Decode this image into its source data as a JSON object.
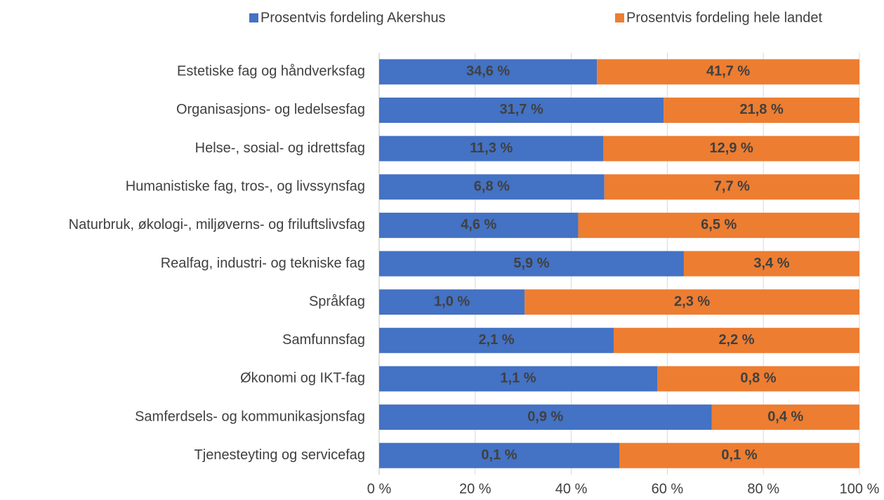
{
  "chart_data": {
    "type": "bar",
    "orientation": "horizontal",
    "stacking": "percent",
    "categories": [
      "Estetiske fag og håndverksfag",
      "Organisasjons- og ledelsesfag",
      "Helse-, sosial- og idrettsfag",
      "Humanistiske fag, tros-, og livssynsfag",
      "Naturbruk, økologi-, miljøverns- og friluftslivsfag",
      "Realfag, industri- og tekniske fag",
      "Språkfag",
      "Samfunnsfag",
      "Økonomi og IKT-fag",
      "Samferdsels- og kommunikasjonsfag",
      "Tjenesteyting og servicefag"
    ],
    "series": [
      {
        "name": "Prosentvis fordeling Akershus",
        "color": "#4472c4",
        "values": [
          34.6,
          31.7,
          11.3,
          6.8,
          4.6,
          5.9,
          1.0,
          2.1,
          1.1,
          0.9,
          0.1
        ],
        "value_labels": [
          "34,6 %",
          "31,7 %",
          "11,3 %",
          "6,8 %",
          "4,6 %",
          "5,9 %",
          "1,0 %",
          "2,1 %",
          "1,1 %",
          "0,9 %",
          "0,1 %"
        ]
      },
      {
        "name": "Prosentvis fordeling hele landet",
        "color": "#ed7d31",
        "values": [
          41.7,
          21.8,
          12.9,
          7.7,
          6.5,
          3.4,
          2.3,
          2.2,
          0.8,
          0.4,
          0.1
        ],
        "value_labels": [
          "41,7 %",
          "21,8 %",
          "12,9 %",
          "7,7 %",
          "6,5 %",
          "3,4 %",
          "2,3 %",
          "2,2 %",
          "0,8 %",
          "0,4 %",
          "0,1 %"
        ]
      }
    ],
    "xlim": [
      0,
      100
    ],
    "xticks": [
      {
        "value": 0,
        "label": "0 %"
      },
      {
        "value": 20,
        "label": "20 %"
      },
      {
        "value": 40,
        "label": "40 %"
      },
      {
        "value": 60,
        "label": "60 %"
      },
      {
        "value": 80,
        "label": "80 %"
      },
      {
        "value": 100,
        "label": "100 %"
      }
    ],
    "grid": true,
    "legend": "top"
  }
}
